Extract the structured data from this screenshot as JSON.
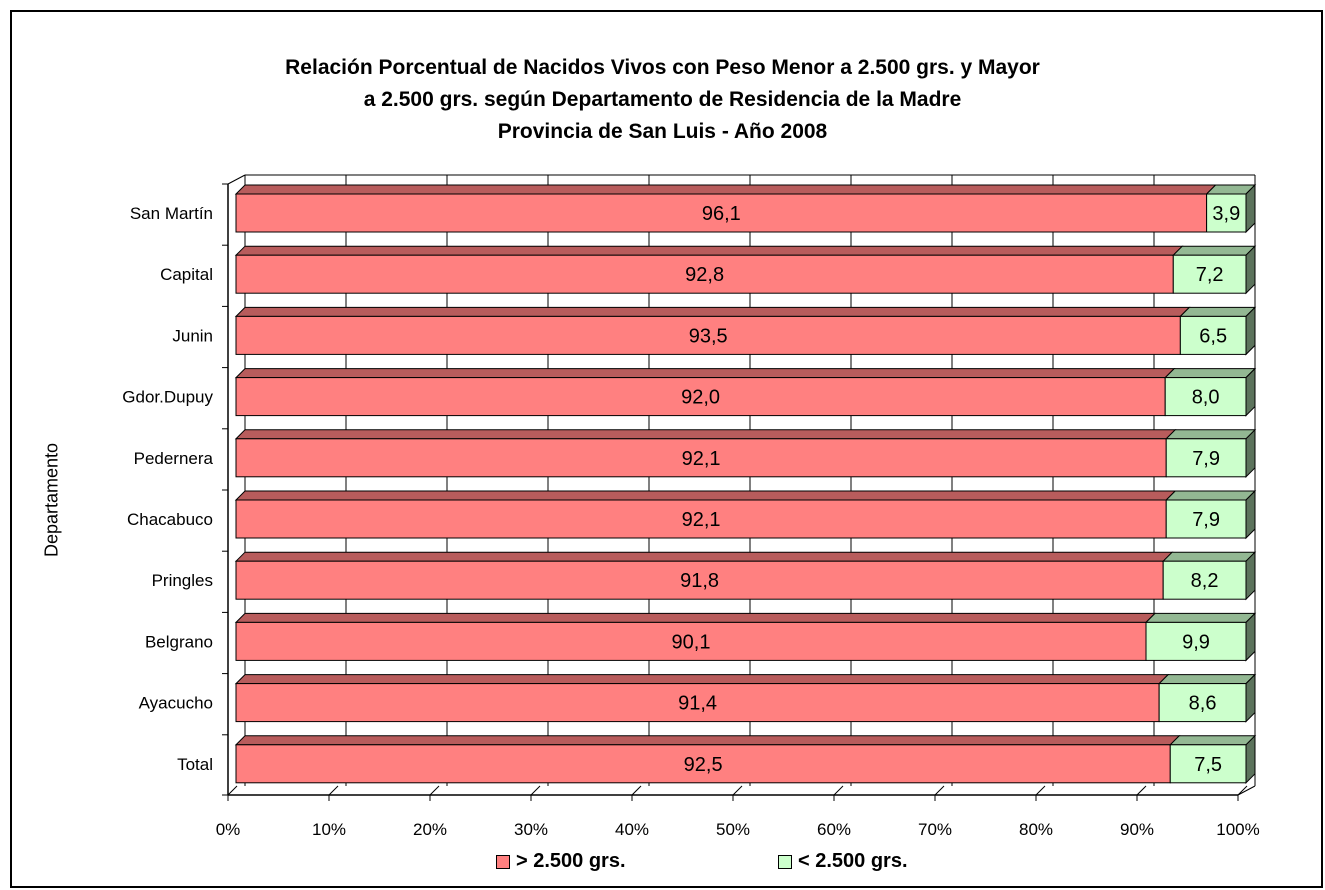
{
  "chart_data": {
    "type": "bar",
    "orientation": "horizontal",
    "stacked": true,
    "percent_stacked": true,
    "title_lines": [
      "Relación Porcentual de Nacidos Vivos con Peso Menor a 2.500 grs. y Mayor",
      "a 2.500 grs. según Departamento de Residencia de la Madre",
      "Provincia de San Luis - Año 2008"
    ],
    "xlabel": "",
    "ylabel": "Departamento",
    "xlim": [
      0,
      100
    ],
    "x_ticks": [
      "0%",
      "10%",
      "20%",
      "30%",
      "40%",
      "50%",
      "60%",
      "70%",
      "80%",
      "90%",
      "100%"
    ],
    "categories": [
      "San Martín",
      "Capital",
      "Junin",
      "Gdor.Dupuy",
      "Pedernera",
      "Chacabuco",
      "Pringles",
      "Belgrano",
      "Ayacucho",
      "Total"
    ],
    "series": [
      {
        "name": "> 2.500 grs.",
        "color": "#ff8080",
        "values": [
          96.1,
          92.8,
          93.5,
          92.0,
          92.1,
          92.1,
          91.8,
          90.1,
          91.4,
          92.5
        ],
        "labels": [
          "96,1",
          "92,8",
          "93,5",
          "92,0",
          "92,1",
          "92,1",
          "91,8",
          "90,1",
          "91,4",
          "92,5"
        ]
      },
      {
        "name": "< 2.500 grs.",
        "color": "#ccffcc",
        "values": [
          3.9,
          7.2,
          6.5,
          8.0,
          7.9,
          7.9,
          8.2,
          9.9,
          8.6,
          7.5
        ],
        "labels": [
          "3,9",
          "7,2",
          "6,5",
          "8,0",
          "7,9",
          "7,9",
          "8,2",
          "9,9",
          "8,6",
          "7,5"
        ]
      }
    ],
    "grid": true,
    "legend_position": "bottom"
  }
}
